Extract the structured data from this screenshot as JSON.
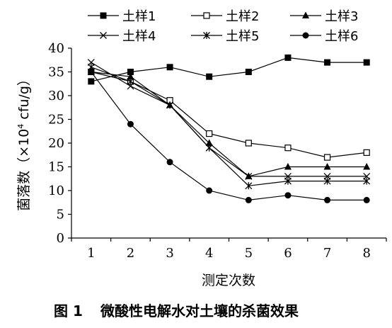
{
  "chart_data": {
    "type": "line",
    "categories": [
      "1",
      "2",
      "3",
      "4",
      "5",
      "6",
      "7",
      "8"
    ],
    "xlabel": "测定次数",
    "ylabel_prefix": "菌落数（×10",
    "ylabel_sup": "4",
    "ylabel_suffix": " cfu/g）",
    "ylim": [
      0,
      40
    ],
    "yticks": [
      0,
      5,
      10,
      15,
      20,
      25,
      30,
      35,
      40
    ],
    "grid": false,
    "legend_position": "top",
    "series": [
      {
        "name": "土样1",
        "marker": "filled-square",
        "values": [
          33,
          35,
          36,
          34,
          35,
          38,
          37,
          37
        ]
      },
      {
        "name": "土样2",
        "marker": "open-square",
        "values": [
          35,
          33,
          29,
          22,
          20,
          19,
          17,
          18
        ]
      },
      {
        "name": "土样3",
        "marker": "filled-triangle",
        "values": [
          35,
          34,
          28,
          20,
          13,
          15,
          15,
          15
        ]
      },
      {
        "name": "土样4",
        "marker": "x",
        "values": [
          37,
          32,
          28,
          19,
          13,
          13,
          13,
          13
        ]
      },
      {
        "name": "土样5",
        "marker": "asterisk",
        "values": [
          36,
          33,
          28,
          19,
          11,
          12,
          12,
          12
        ]
      },
      {
        "name": "土样6",
        "marker": "filled-circle",
        "values": [
          35,
          24,
          16,
          10,
          8,
          9,
          8,
          8
        ]
      }
    ]
  },
  "caption": {
    "label": "图 1",
    "text": "微酸性电解水对土壤的杀菌效果"
  }
}
